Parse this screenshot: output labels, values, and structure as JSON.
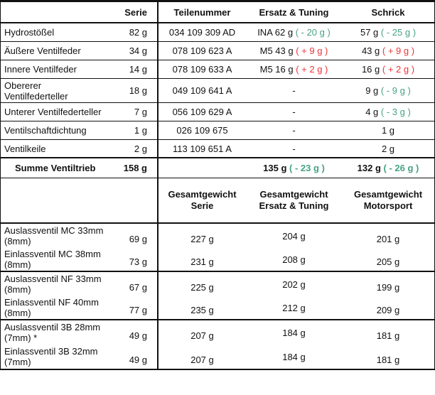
{
  "colors": {
    "negative_green": "#46A184",
    "positive_red": "#EE3237",
    "grid_line": "#111111",
    "background": "#FFFFFF",
    "text": "#111111"
  },
  "upper": {
    "header": {
      "serie": "Serie",
      "teilenummer": "Teilenummer",
      "ersatz": "Ersatz & Tuning",
      "schrick": "Schrick"
    },
    "rows": [
      {
        "label": "Hydrostößel",
        "serie": "82 g",
        "teilenummer": "034 109 309 AD",
        "ersatz_main": "INA 62 g",
        "ersatz_delta": "( - 20 g )",
        "ersatz_delta_class": "dneg",
        "schrick_main": "57 g",
        "schrick_delta": "( - 25 g )",
        "schrick_delta_class": "dneg"
      },
      {
        "label": "Äußere Ventilfeder",
        "serie": "34 g",
        "teilenummer": "078 109 623 A",
        "ersatz_main": "M5 43 g",
        "ersatz_delta": "( + 9 g )",
        "ersatz_delta_class": "dpos",
        "schrick_main": "43 g",
        "schrick_delta": "( + 9 g )",
        "schrick_delta_class": "dpos"
      },
      {
        "label": "Innere Ventilfeder",
        "serie": "14 g",
        "teilenummer": "078 109 633 A",
        "ersatz_main": "M5 16 g",
        "ersatz_delta": "( + 2 g )",
        "ersatz_delta_class": "dpos",
        "schrick_main": "16 g",
        "schrick_delta": "( + 2 g )",
        "schrick_delta_class": "dpos"
      },
      {
        "label": "Obererer\nVentilfederteller",
        "serie": "18 g",
        "teilenummer": "049 109 641 A",
        "ersatz_main": "-",
        "ersatz_delta": "",
        "ersatz_delta_class": "",
        "schrick_main": "9 g",
        "schrick_delta": "( - 9 g )",
        "schrick_delta_class": "dneg"
      },
      {
        "label": "Unterer Ventilfederteller",
        "serie": "7 g",
        "teilenummer": "056 109 629 A",
        "ersatz_main": "-",
        "ersatz_delta": "",
        "ersatz_delta_class": "",
        "schrick_main": "4 g",
        "schrick_delta": "( - 3 g )",
        "schrick_delta_class": "dneg"
      },
      {
        "label": "Ventilschaftdichtung",
        "serie": "1 g",
        "teilenummer": "026 109 675",
        "ersatz_main": "-",
        "ersatz_delta": "",
        "ersatz_delta_class": "",
        "schrick_main": "1 g",
        "schrick_delta": "",
        "schrick_delta_class": ""
      },
      {
        "label": "Ventilkeile",
        "serie": "2 g",
        "teilenummer": "113 109 651 A",
        "ersatz_main": "-",
        "ersatz_delta": "",
        "ersatz_delta_class": "",
        "schrick_main": "2 g",
        "schrick_delta": "",
        "schrick_delta_class": ""
      }
    ],
    "summary": {
      "label": "Summe Ventiltrieb",
      "serie": "158 g",
      "ersatz_main": "135 g",
      "ersatz_delta": "( - 23 g )",
      "ersatz_delta_class": "dneg",
      "schrick_main": "132 g",
      "schrick_delta": "( - 26 g )",
      "schrick_delta_class": "dneg"
    }
  },
  "lower": {
    "header": {
      "serie": {
        "l1": "Gesamtgewicht",
        "l2": "Serie"
      },
      "ersatz": {
        "l1": "Gesamtgewicht",
        "l2": "Ersatz & Tuning"
      },
      "motorsport": {
        "l1": "Gesamtgewicht",
        "l2": "Motorsport"
      }
    },
    "rows": [
      {
        "label": "Auslassventil MC 33mm\n(8mm)",
        "serie": "69 g",
        "g_serie": "227 g",
        "g_ersatz": "204 g",
        "g_motorsport": "201 g"
      },
      {
        "label": "Einlassventil MC 38mm\n(8mm)",
        "serie": "73 g",
        "g_serie": "231 g",
        "g_ersatz": "208 g",
        "g_motorsport": "205 g"
      },
      {
        "label": "Auslassventil NF 33mm\n(8mm)",
        "serie": "67 g",
        "g_serie": "225 g",
        "g_ersatz": "202 g",
        "g_motorsport": "199 g"
      },
      {
        "label": "Einlassventil NF 40mm\n(8mm)",
        "serie": "77 g",
        "g_serie": "235 g",
        "g_ersatz": "212 g",
        "g_motorsport": "209 g"
      },
      {
        "label": "Auslassventil 3B 28mm\n(7mm) *",
        "serie": "49 g",
        "g_serie": "207 g",
        "g_ersatz": "184 g",
        "g_motorsport": "181 g"
      },
      {
        "label": "Einlassventil 3B 32mm\n(7mm)",
        "serie": "49 g",
        "g_serie": "207 g",
        "g_ersatz": "184 g",
        "g_motorsport": "181 g"
      }
    ]
  }
}
